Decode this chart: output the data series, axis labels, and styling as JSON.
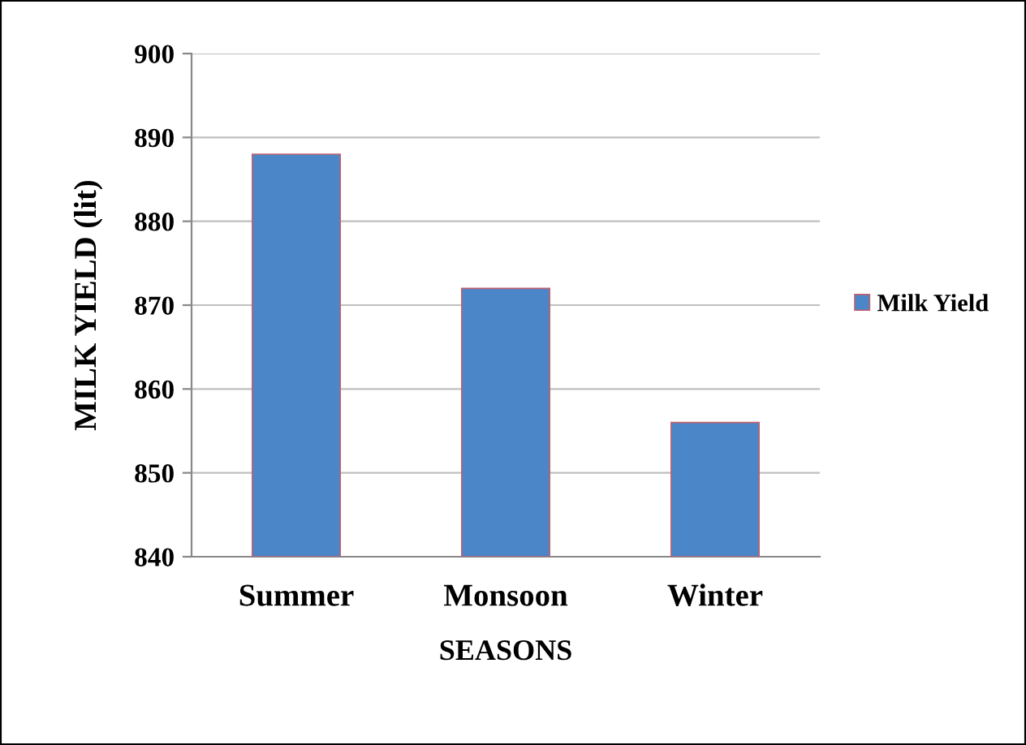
{
  "chart_data": {
    "type": "bar",
    "xlabel": "SEASONS",
    "ylabel": "MILK YIELD (lit)",
    "categories": [
      "Summer",
      "Monsoon",
      "Winter"
    ],
    "series": [
      {
        "name": "Milk Yield",
        "color": "#4a86c8",
        "values": [
          888,
          872,
          856
        ]
      }
    ],
    "ylim": [
      840,
      900
    ],
    "yticks": [
      840,
      850,
      860,
      870,
      880,
      890,
      900
    ],
    "grid": "y",
    "legend": "right"
  }
}
